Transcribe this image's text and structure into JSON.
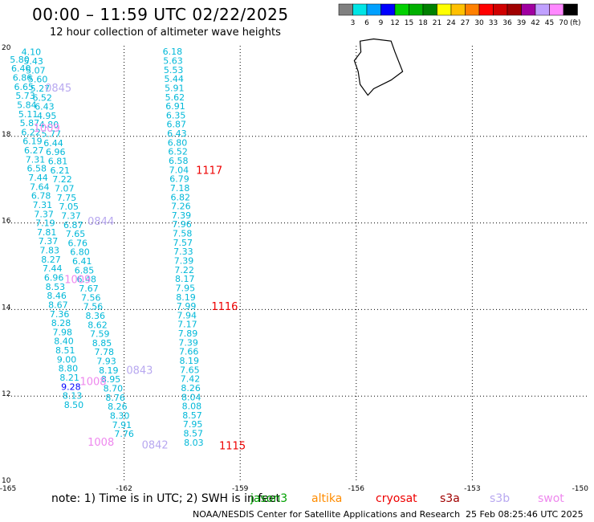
{
  "header": {
    "title": "00:00 – 11:59 UTC 02/22/2025",
    "subtitle": "12 hour collection of altimeter wave heights"
  },
  "colorbar": {
    "colors": [
      "#808080",
      "#00e5e5",
      "#00a0ff",
      "#0000ff",
      "#00d000",
      "#00b000",
      "#008000",
      "#ffff00",
      "#ffc000",
      "#ff8000",
      "#ff0000",
      "#d00000",
      "#a00000",
      "#a000a0",
      "#c0a0ff",
      "#ff88ff",
      "#000000"
    ],
    "labels": [
      "3",
      "6",
      "9",
      "12",
      "15",
      "18",
      "21",
      "24",
      "27",
      "30",
      "33",
      "36",
      "39",
      "42",
      "45",
      "70"
    ],
    "unit": "(ft)"
  },
  "axes": {
    "lat_labels": [
      "20",
      "18",
      "16",
      "14",
      "12",
      "10"
    ],
    "lon_labels": [
      "-165",
      "-162",
      "-159",
      "-156",
      "-153",
      "-150"
    ],
    "lat_range": [
      10,
      20
    ],
    "lon_range": [
      -165,
      -150
    ],
    "grid": true
  },
  "tracks": [
    {
      "name": "track-a",
      "color": "#00b8d8",
      "lon_start": -164.4,
      "lon_end": -162.0,
      "points": [
        {
          "lat": 19.95,
          "v": "4.10"
        },
        {
          "lat": 19.74,
          "v": "5.43"
        },
        {
          "lat": 19.53,
          "v": "5.07"
        },
        {
          "lat": 19.32,
          "v": "5.60"
        },
        {
          "lat": 19.11,
          "v": "5.27"
        },
        {
          "lat": 18.9,
          "v": "6.52"
        },
        {
          "lat": 18.69,
          "v": "6.43"
        },
        {
          "lat": 18.48,
          "v": "4.95"
        },
        {
          "lat": 18.27,
          "v": "4.80"
        },
        {
          "lat": 18.06,
          "v": "5.77"
        },
        {
          "lat": 17.85,
          "v": "6.44"
        },
        {
          "lat": 17.64,
          "v": "6.96"
        },
        {
          "lat": 17.43,
          "v": "6.81"
        },
        {
          "lat": 17.22,
          "v": "6.21"
        },
        {
          "lat": 17.01,
          "v": "7.22"
        },
        {
          "lat": 16.8,
          "v": "7.07"
        },
        {
          "lat": 16.59,
          "v": "7.75"
        },
        {
          "lat": 16.38,
          "v": "7.05"
        },
        {
          "lat": 16.17,
          "v": "7.37"
        },
        {
          "lat": 15.96,
          "v": "6.87"
        },
        {
          "lat": 15.75,
          "v": "7.65"
        },
        {
          "lat": 15.54,
          "v": "6.76"
        },
        {
          "lat": 15.33,
          "v": "6.80"
        },
        {
          "lat": 15.12,
          "v": "6.41"
        },
        {
          "lat": 14.91,
          "v": "6.85"
        },
        {
          "lat": 14.7,
          "v": "6.48"
        },
        {
          "lat": 14.49,
          "v": "7.67"
        },
        {
          "lat": 14.28,
          "v": "7.56"
        },
        {
          "lat": 14.07,
          "v": "7.56"
        },
        {
          "lat": 13.86,
          "v": "8.36"
        },
        {
          "lat": 13.65,
          "v": "8.62"
        },
        {
          "lat": 13.44,
          "v": "7.59"
        },
        {
          "lat": 13.23,
          "v": "8.85"
        },
        {
          "lat": 13.02,
          "v": "7.78"
        },
        {
          "lat": 12.81,
          "v": "7.93"
        },
        {
          "lat": 12.6,
          "v": "8.19"
        },
        {
          "lat": 12.39,
          "v": "8.95"
        },
        {
          "lat": 12.18,
          "v": "8.70"
        },
        {
          "lat": 11.97,
          "v": "8.76"
        },
        {
          "lat": 11.76,
          "v": "8.26"
        },
        {
          "lat": 11.55,
          "v": "8.30"
        },
        {
          "lat": 11.34,
          "v": "7.91"
        },
        {
          "lat": 11.13,
          "v": "7.76"
        }
      ]
    },
    {
      "name": "track-b",
      "color": "#00b8d8",
      "lon_start": -164.7,
      "lon_end": -163.3,
      "points": [
        {
          "lat": 19.78,
          "v": "5.80"
        },
        {
          "lat": 19.57,
          "v": "6.40"
        },
        {
          "lat": 19.36,
          "v": "6.86"
        },
        {
          "lat": 19.15,
          "v": "6.65"
        },
        {
          "lat": 18.94,
          "v": "5.73"
        },
        {
          "lat": 18.73,
          "v": "5.84"
        },
        {
          "lat": 18.52,
          "v": "5.11"
        },
        {
          "lat": 18.31,
          "v": "5.87"
        },
        {
          "lat": 18.1,
          "v": "6.22"
        },
        {
          "lat": 17.89,
          "v": "6.19"
        },
        {
          "lat": 17.68,
          "v": "6.27"
        },
        {
          "lat": 17.47,
          "v": "7.31"
        },
        {
          "lat": 17.26,
          "v": "6.58"
        },
        {
          "lat": 17.05,
          "v": "7.44"
        },
        {
          "lat": 16.84,
          "v": "7.64"
        },
        {
          "lat": 16.63,
          "v": "6.78"
        },
        {
          "lat": 16.42,
          "v": "7.31"
        },
        {
          "lat": 16.21,
          "v": "7.37"
        },
        {
          "lat": 16.0,
          "v": "7.19"
        },
        {
          "lat": 15.79,
          "v": "7.81"
        },
        {
          "lat": 15.58,
          "v": "7.37"
        },
        {
          "lat": 15.37,
          "v": "7.83"
        },
        {
          "lat": 15.16,
          "v": "8.27"
        },
        {
          "lat": 14.95,
          "v": "7.44"
        },
        {
          "lat": 14.74,
          "v": "6.96"
        },
        {
          "lat": 14.53,
          "v": "8.53"
        },
        {
          "lat": 14.32,
          "v": "8.46"
        },
        {
          "lat": 14.11,
          "v": "8.67"
        },
        {
          "lat": 13.9,
          "v": "7.36"
        },
        {
          "lat": 13.69,
          "v": "8.28"
        },
        {
          "lat": 13.48,
          "v": "7.98"
        },
        {
          "lat": 13.27,
          "v": "8.40"
        },
        {
          "lat": 13.06,
          "v": "8.51"
        },
        {
          "lat": 12.85,
          "v": "9.00"
        },
        {
          "lat": 12.64,
          "v": "8.80"
        },
        {
          "lat": 12.43,
          "v": "8.21"
        },
        {
          "lat": 12.22,
          "v": "9.28",
          "c": "#0000ff"
        },
        {
          "lat": 12.01,
          "v": "8.13"
        },
        {
          "lat": 11.8,
          "v": "8.50"
        }
      ]
    },
    {
      "name": "track-c",
      "color": "#00b8d8",
      "lon_start": -160.75,
      "lon_end": -160.2,
      "points": [
        {
          "lat": 19.96,
          "v": "6.18"
        },
        {
          "lat": 19.75,
          "v": "5.63"
        },
        {
          "lat": 19.54,
          "v": "5.53"
        },
        {
          "lat": 19.33,
          "v": "5.44"
        },
        {
          "lat": 19.12,
          "v": "5.91"
        },
        {
          "lat": 18.91,
          "v": "5.62"
        },
        {
          "lat": 18.7,
          "v": "6.91"
        },
        {
          "lat": 18.49,
          "v": "6.35"
        },
        {
          "lat": 18.28,
          "v": "6.87"
        },
        {
          "lat": 18.07,
          "v": "6.43"
        },
        {
          "lat": 17.86,
          "v": "6.80"
        },
        {
          "lat": 17.65,
          "v": "6.52"
        },
        {
          "lat": 17.44,
          "v": "6.58"
        },
        {
          "lat": 17.23,
          "v": "7.04"
        },
        {
          "lat": 17.02,
          "v": "6.79"
        },
        {
          "lat": 16.81,
          "v": "7.18"
        },
        {
          "lat": 16.6,
          "v": "6.82"
        },
        {
          "lat": 16.39,
          "v": "7.26"
        },
        {
          "lat": 16.18,
          "v": "7.39"
        },
        {
          "lat": 15.97,
          "v": "7.96"
        },
        {
          "lat": 15.76,
          "v": "7.58"
        },
        {
          "lat": 15.55,
          "v": "7.57"
        },
        {
          "lat": 15.34,
          "v": "7.33"
        },
        {
          "lat": 15.13,
          "v": "7.39"
        },
        {
          "lat": 14.92,
          "v": "7.22"
        },
        {
          "lat": 14.71,
          "v": "8.17"
        },
        {
          "lat": 14.5,
          "v": "7.95"
        },
        {
          "lat": 14.29,
          "v": "8.19"
        },
        {
          "lat": 14.08,
          "v": "7.99"
        },
        {
          "lat": 13.87,
          "v": "7.94"
        },
        {
          "lat": 13.66,
          "v": "7.17"
        },
        {
          "lat": 13.45,
          "v": "7.89"
        },
        {
          "lat": 13.24,
          "v": "7.39"
        },
        {
          "lat": 13.03,
          "v": "7.66"
        },
        {
          "lat": 12.82,
          "v": "8.19"
        },
        {
          "lat": 12.61,
          "v": "7.65"
        },
        {
          "lat": 12.4,
          "v": "7.42"
        },
        {
          "lat": 12.19,
          "v": "8.26"
        },
        {
          "lat": 11.98,
          "v": "8.04"
        },
        {
          "lat": 11.77,
          "v": "8.08"
        },
        {
          "lat": 11.56,
          "v": "8.57"
        },
        {
          "lat": 11.35,
          "v": "7.95"
        },
        {
          "lat": 11.14,
          "v": "8.57"
        },
        {
          "lat": 10.93,
          "v": "8.03"
        }
      ]
    }
  ],
  "pass_labels": [
    {
      "text": "0845",
      "color": "#b8a8f0",
      "lat": 19.13,
      "lon": -163.7
    },
    {
      "text": "1009",
      "color": "#ee88ee",
      "lat": 18.2,
      "lon": -164.0
    },
    {
      "text": "0844",
      "color": "#b8a8f0",
      "lat": 16.05,
      "lon": -162.6
    },
    {
      "text": "1009",
      "color": "#ee88ee",
      "lat": 14.7,
      "lon": -163.2
    },
    {
      "text": "1117",
      "color": "#ee0000",
      "lat": 17.23,
      "lon": -159.8
    },
    {
      "text": "1116",
      "color": "#ee0000",
      "lat": 14.08,
      "lon": -159.4
    },
    {
      "text": "0843",
      "color": "#b8a8f0",
      "lat": 12.61,
      "lon": -161.6
    },
    {
      "text": "1008",
      "color": "#ee88ee",
      "lat": 12.35,
      "lon": -162.8
    },
    {
      "text": "1008",
      "color": "#ee88ee",
      "lat": 10.95,
      "lon": -162.6
    },
    {
      "text": "0842",
      "color": "#b8a8f0",
      "lat": 10.88,
      "lon": -161.2
    },
    {
      "text": "1115",
      "color": "#ee0000",
      "lat": 10.86,
      "lon": -159.2
    }
  ],
  "footer": {
    "note": "note: 1) Time is in UTC; 2) SWH is in feet",
    "satellites": [
      {
        "name": "jason3",
        "color": "#00a000"
      },
      {
        "name": "altika",
        "color": "#ff8c00"
      },
      {
        "name": "cryosat",
        "color": "#ee0000"
      },
      {
        "name": "s3a",
        "color": "#a00000"
      },
      {
        "name": "s3b",
        "color": "#b8a8f0"
      },
      {
        "name": "swot",
        "color": "#ee88ee"
      }
    ],
    "credit": "NOAA/NESDIS Center for Satellite Applications and Research",
    "timestamp": "25 Feb 08:25:46 UTC 2025"
  }
}
